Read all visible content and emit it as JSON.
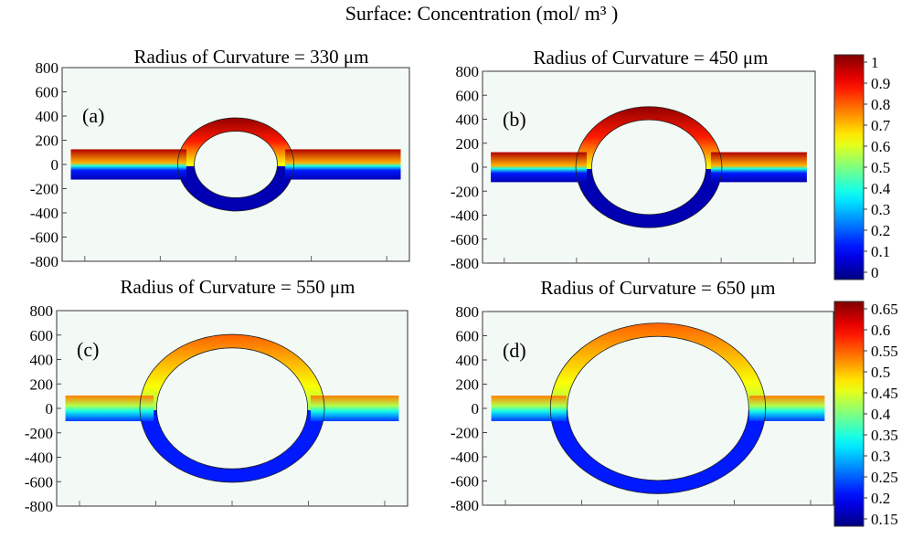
{
  "figure": {
    "title": "Surface: Concentration (mol/ m³ )"
  },
  "chart_data": [
    {
      "type": "heatmap",
      "panel_label": "(a)",
      "title": "Radius of Curvature = 330 μm",
      "radius_um": 330,
      "yticks": [
        800,
        600,
        400,
        200,
        0,
        -200,
        -400,
        -600,
        -800
      ],
      "ylim": [
        -800,
        800
      ],
      "color_range": [
        0,
        1
      ],
      "colorbar": "top"
    },
    {
      "type": "heatmap",
      "panel_label": "(b)",
      "title": "Radius of Curvature = 450 μm",
      "radius_um": 450,
      "yticks": [
        800,
        600,
        400,
        200,
        0,
        -200,
        -400,
        -600,
        -800
      ],
      "ylim": [
        -800,
        800
      ],
      "color_range": [
        0,
        1
      ],
      "colorbar": "top"
    },
    {
      "type": "heatmap",
      "panel_label": "(c)",
      "title": "Radius of Curvature = 550 μm",
      "radius_um": 550,
      "yticks": [
        800,
        600,
        400,
        200,
        0,
        -200,
        -400,
        -600,
        -800
      ],
      "ylim": [
        -800,
        800
      ],
      "color_range": [
        0.15,
        0.65
      ],
      "colorbar": "bottom"
    },
    {
      "type": "heatmap",
      "panel_label": "(d)",
      "title": "Radius of Curvature = 650 μm",
      "radius_um": 650,
      "yticks": [
        800,
        600,
        400,
        200,
        0,
        -200,
        -400,
        -600,
        -800
      ],
      "ylim": [
        -800,
        800
      ],
      "color_range": [
        0.15,
        0.65
      ],
      "colorbar": "bottom"
    }
  ],
  "colorbars": {
    "top": {
      "ticks": [
        "1",
        "0.9",
        "0.8",
        "0.7",
        "0.6",
        "0.5",
        "0.4",
        "0.3",
        "0.2",
        "0.1",
        "0"
      ],
      "range": [
        0,
        1
      ],
      "colormap": "jet"
    },
    "bottom": {
      "ticks": [
        "0.65",
        "0.6",
        "0.55",
        "0.5",
        "0.45",
        "0.4",
        "0.35",
        "0.3",
        "0.25",
        "0.2",
        "0.15"
      ],
      "range": [
        0.15,
        0.65
      ],
      "colormap": "jet"
    }
  },
  "colors": {
    "jet": [
      "#00007f",
      "#0000ff",
      "#007fff",
      "#00ffff",
      "#7fff7f",
      "#ffff00",
      "#ff7f00",
      "#ff0000",
      "#7f0000"
    ],
    "plot_background": "#f3faf5",
    "frame": "#333333"
  }
}
